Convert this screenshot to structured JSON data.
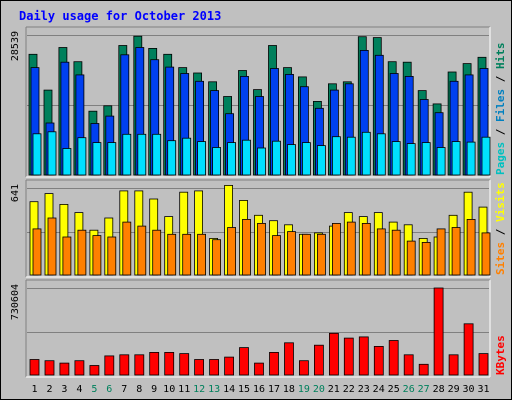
{
  "chart_data": {
    "type": "bar",
    "title": "Daily usage for October 2013",
    "categories": [
      "1",
      "2",
      "3",
      "4",
      "5",
      "6",
      "7",
      "8",
      "9",
      "10",
      "11",
      "12",
      "13",
      "14",
      "15",
      "16",
      "17",
      "18",
      "19",
      "20",
      "21",
      "22",
      "23",
      "24",
      "25",
      "26",
      "27",
      "28",
      "29",
      "30",
      "31"
    ],
    "weekend_days": [
      "5",
      "6",
      "12",
      "13",
      "19",
      "20",
      "26",
      "27"
    ],
    "panels": [
      {
        "id": "hits",
        "max_label": "28539",
        "max_value": 28539,
        "legend": [
          {
            "label": "Pages",
            "color": "#00C0C0"
          },
          {
            "label": "Files",
            "color": "#0080C0"
          },
          {
            "label": "Hits",
            "color": "#00805C"
          }
        ],
        "series": [
          {
            "name": "Hits",
            "color": "#00805C",
            "values": [
              24600,
              17300,
              26000,
              23100,
              13000,
              14100,
              26400,
              28300,
              25800,
              24600,
              21900,
              20800,
              19000,
              16000,
              21300,
              17400,
              26400,
              21900,
              20000,
              15000,
              18600,
              19000,
              28200,
              28000,
              23100,
              23000,
              17200,
              14500,
              21000,
              22700,
              24000
            ]
          },
          {
            "name": "Files",
            "color": "#0040F0",
            "values": [
              21900,
              10600,
              23000,
              20400,
              10500,
              12000,
              24500,
              26000,
              23500,
              22000,
              20700,
              19100,
              17200,
              12500,
              20100,
              16000,
              21700,
              20500,
              18000,
              13600,
              17300,
              18600,
              25400,
              24400,
              20700,
              20100,
              15400,
              12700,
              19100,
              20400,
              21700
            ]
          },
          {
            "name": "Pages",
            "color": "#00E0FF",
            "values": [
              8400,
              8800,
              5400,
              7600,
              6600,
              6600,
              8300,
              8300,
              8300,
              7000,
              7500,
              6800,
              5600,
              6600,
              7100,
              5500,
              6900,
              6200,
              6600,
              6000,
              7800,
              7700,
              8700,
              8400,
              6800,
              6400,
              6600,
              5600,
              6800,
              6700,
              7700
            ]
          }
        ]
      },
      {
        "id": "visits",
        "max_label": "641",
        "max_value": 641,
        "legend": [
          {
            "label": "Sites",
            "color": "#FF8000"
          },
          {
            "label": "Visits",
            "color": "#FFFF00"
          }
        ],
        "series": [
          {
            "name": "Visits",
            "color": "#FFFF00",
            "values": [
              540,
              600,
              520,
              460,
              330,
              420,
              620,
              620,
              560,
              430,
              610,
              620,
              270,
              660,
              550,
              440,
              400,
              370,
              300,
              310,
              360,
              460,
              430,
              460,
              390,
              370,
              270,
              280,
              440,
              610,
              500
            ]
          },
          {
            "name": "Sites",
            "color": "#FF8000",
            "values": [
              340,
              420,
              280,
              330,
              290,
              280,
              390,
              360,
              330,
              300,
              300,
              300,
              260,
              350,
              410,
              380,
              290,
              320,
              300,
              300,
              380,
              390,
              380,
              340,
              330,
              250,
              240,
              340,
              350,
              410,
              310
            ]
          }
        ]
      },
      {
        "id": "kbytes",
        "max_label": "730604",
        "max_value": 730604,
        "legend": [
          {
            "label": "KBytes",
            "color": "#FF0000"
          }
        ],
        "series": [
          {
            "name": "KBytes",
            "color": "#FF0000",
            "values": [
              130000,
              120000,
              100000,
              120000,
              80000,
              160000,
              170000,
              170000,
              190000,
              190000,
              180000,
              130000,
              130000,
              150000,
              230000,
              100000,
              190000,
              270000,
              120000,
              250000,
              350000,
              310000,
              320000,
              240000,
              290000,
              170000,
              90000,
              730604,
              170000,
              430000,
              180000
            ]
          }
        ]
      }
    ]
  }
}
